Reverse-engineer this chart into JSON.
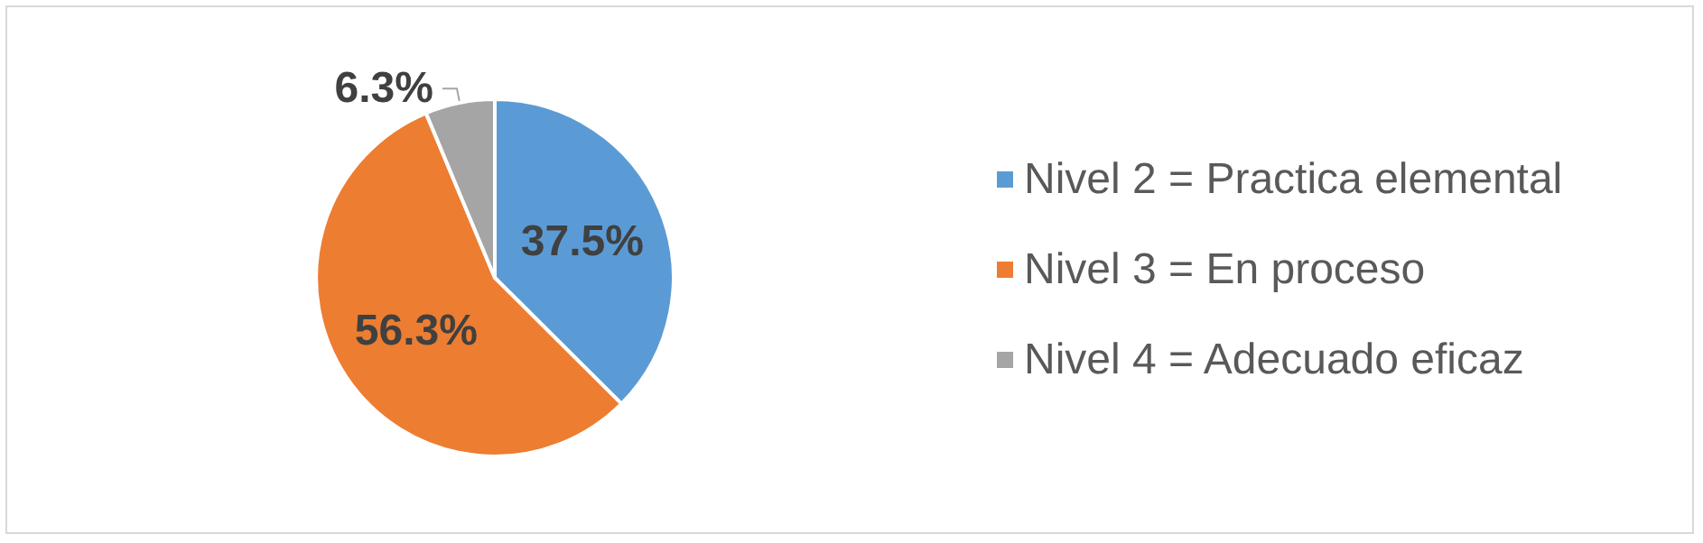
{
  "chart_data": {
    "type": "pie",
    "categories": [
      "Nivel 2 = Practica elemental",
      "Nivel 3 = En proceso",
      "Nivel 4 = Adecuado eficaz"
    ],
    "values": [
      37.5,
      56.3,
      6.3
    ],
    "value_labels": [
      "37.5%",
      "56.3%",
      "6.3%"
    ],
    "colors": [
      "#5b9bd5",
      "#ed7d31",
      "#a5a5a5"
    ],
    "legend": "right"
  }
}
